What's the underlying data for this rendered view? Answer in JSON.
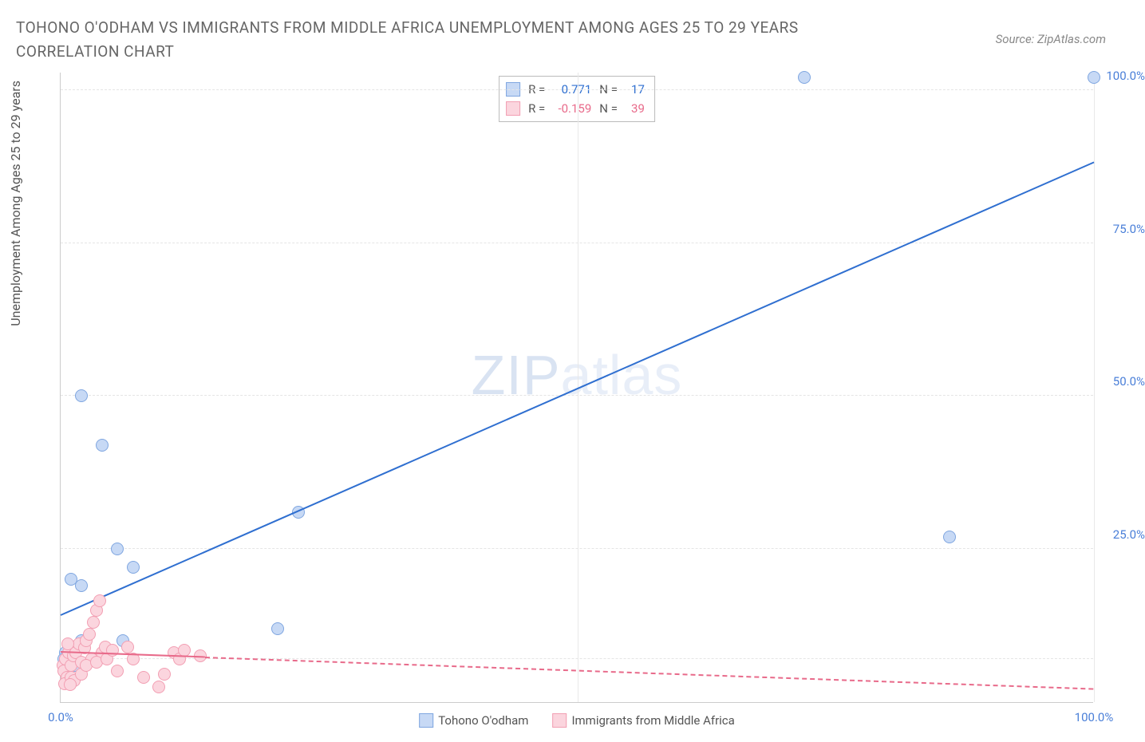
{
  "header": {
    "title": "TOHONO O'ODHAM VS IMMIGRANTS FROM MIDDLE AFRICA UNEMPLOYMENT AMONG AGES 25 TO 29 YEARS CORRELATION CHART",
    "source": "Source: ZipAtlas.com"
  },
  "watermark": {
    "part1": "ZIP",
    "part2": "atlas"
  },
  "chart": {
    "type": "scatter",
    "ylabel": "Unemployment Among Ages 25 to 29 years",
    "xlim": [
      0,
      100
    ],
    "ylim": [
      0,
      103
    ],
    "xticks": [
      {
        "v": 0,
        "l": "0.0%"
      },
      {
        "v": 50,
        "l": ""
      },
      {
        "v": 100,
        "l": "100.0%"
      }
    ],
    "yticks": [
      {
        "v": 25,
        "l": "25.0%"
      },
      {
        "v": 50,
        "l": "50.0%"
      },
      {
        "v": 75,
        "l": "75.0%"
      },
      {
        "v": 100,
        "l": "100.0%"
      }
    ],
    "grid_h": [
      25,
      50,
      75,
      100,
      7
    ],
    "grid_v": [
      50,
      100
    ],
    "background_color": "#ffffff",
    "grid_color": "#e5e5e5",
    "axis_tick_color": "#4a7fd8",
    "series": [
      {
        "name": "Tohono O'odham",
        "color_fill": "#c7d9f5",
        "color_stroke": "#7fa6e0",
        "trend_color": "#2f6fd0",
        "trend_dashed": false,
        "r": 0.771,
        "n": 17,
        "trend": {
          "x1": 0,
          "y1": 14,
          "x2": 100,
          "y2": 88
        },
        "points": [
          {
            "x": 72,
            "y": 102
          },
          {
            "x": 100,
            "y": 102
          },
          {
            "x": 86,
            "y": 27
          },
          {
            "x": 2,
            "y": 50
          },
          {
            "x": 4,
            "y": 42
          },
          {
            "x": 23,
            "y": 31
          },
          {
            "x": 5.5,
            "y": 25
          },
          {
            "x": 7,
            "y": 22
          },
          {
            "x": 1,
            "y": 20
          },
          {
            "x": 2,
            "y": 19
          },
          {
            "x": 21,
            "y": 12
          },
          {
            "x": 6,
            "y": 10
          },
          {
            "x": 2,
            "y": 10
          },
          {
            "x": 0.5,
            "y": 8
          },
          {
            "x": 0.3,
            "y": 7
          },
          {
            "x": 0.9,
            "y": 7
          },
          {
            "x": 1.4,
            "y": 6
          }
        ]
      },
      {
        "name": "Immigrants from Middle Africa",
        "color_fill": "#fbd5de",
        "color_stroke": "#f29fb3",
        "trend_color": "#e86a8a",
        "trend_dashed": true,
        "r": -0.159,
        "n": 39,
        "trend": {
          "x1": 0,
          "y1": 8,
          "x2": 100,
          "y2": 2
        },
        "trend_solid_until": 14,
        "points": [
          {
            "x": 0.2,
            "y": 6
          },
          {
            "x": 0.5,
            "y": 7
          },
          {
            "x": 0.8,
            "y": 8
          },
          {
            "x": 0.3,
            "y": 5
          },
          {
            "x": 1.0,
            "y": 6
          },
          {
            "x": 1.2,
            "y": 7.5
          },
          {
            "x": 0.6,
            "y": 4
          },
          {
            "x": 1.5,
            "y": 8
          },
          {
            "x": 1.8,
            "y": 9.5
          },
          {
            "x": 2.0,
            "y": 6.5
          },
          {
            "x": 2.3,
            "y": 8.8
          },
          {
            "x": 0.4,
            "y": 3
          },
          {
            "x": 2.5,
            "y": 10
          },
          {
            "x": 2.8,
            "y": 11
          },
          {
            "x": 3.0,
            "y": 7
          },
          {
            "x": 3.2,
            "y": 13
          },
          {
            "x": 3.5,
            "y": 15
          },
          {
            "x": 3.8,
            "y": 16.5
          },
          {
            "x": 4.0,
            "y": 8
          },
          {
            "x": 4.3,
            "y": 9
          },
          {
            "x": 1.0,
            "y": 4
          },
          {
            "x": 1.3,
            "y": 3.5
          },
          {
            "x": 0.9,
            "y": 2.8
          },
          {
            "x": 2.0,
            "y": 4.5
          },
          {
            "x": 2.5,
            "y": 6
          },
          {
            "x": 3.5,
            "y": 6.5
          },
          {
            "x": 4.5,
            "y": 7
          },
          {
            "x": 5.0,
            "y": 8.5
          },
          {
            "x": 6.5,
            "y": 9
          },
          {
            "x": 7.0,
            "y": 7
          },
          {
            "x": 8.0,
            "y": 4
          },
          {
            "x": 9.5,
            "y": 2.5
          },
          {
            "x": 11.0,
            "y": 8
          },
          {
            "x": 11.5,
            "y": 7
          },
          {
            "x": 12.0,
            "y": 8.5
          },
          {
            "x": 13.5,
            "y": 7.5
          },
          {
            "x": 10.0,
            "y": 4.5
          },
          {
            "x": 5.5,
            "y": 5
          },
          {
            "x": 0.7,
            "y": 9.5
          }
        ]
      }
    ],
    "legend_box": {
      "r_label": "R =",
      "n_label": "N ="
    },
    "bottom_legend": [
      {
        "label": "Tohono O'odham"
      },
      {
        "label": "Immigrants from Middle Africa"
      }
    ]
  }
}
